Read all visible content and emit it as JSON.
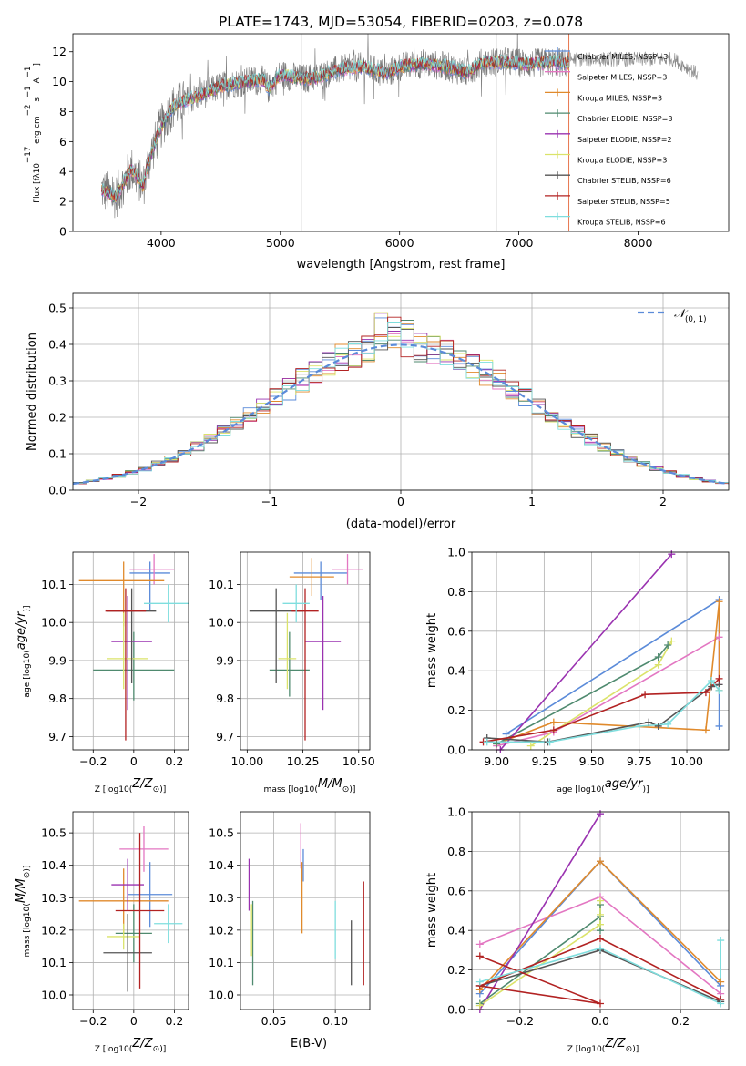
{
  "figure": {
    "title": "PLATE=1743, MJD=53054, FIBERID=0203, z=0.078"
  },
  "chart_data": [
    {
      "id": "spectrum",
      "type": "line",
      "xlabel": "wavelength [Angstrom, rest frame]",
      "ylabel": "Flux [f_λ 10^-17 erg cm^-2 s^-1 A^-1]",
      "xlim": [
        3260,
        8760
      ],
      "ylim": [
        0,
        13.2
      ],
      "xticks": [
        4000,
        5000,
        6000,
        7000,
        8000
      ],
      "yticks": [
        0,
        2,
        4,
        6,
        8,
        10,
        12
      ],
      "grid": false,
      "legend_position": "top-right",
      "data_range": [
        3500,
        7420
      ],
      "observed_color": "#777777",
      "anchors": {
        "x": [
          3500,
          3620,
          3750,
          3850,
          3900,
          4000,
          4100,
          4200,
          4300,
          4500,
          4700,
          4860,
          4900,
          5000,
          5175,
          5300,
          5500,
          5700,
          5890,
          6000,
          6200,
          6400,
          6563,
          6700,
          6900,
          7100,
          7300,
          7420
        ],
        "y": [
          2.8,
          2.3,
          4.2,
          3.0,
          4.8,
          7.0,
          8.3,
          8.7,
          9.0,
          9.7,
          10.0,
          10.1,
          9.5,
          10.5,
          10.2,
          10.3,
          10.8,
          11.0,
          10.5,
          11.0,
          11.2,
          11.0,
          10.6,
          11.3,
          11.3,
          11.2,
          11.3,
          11.2
        ]
      },
      "series": [
        {
          "name": "Chabrier MILES, N_SSP=3",
          "color": "#5b8bd9"
        },
        {
          "name": "Salpeter MILES, N_SSP=3",
          "color": "#e377c2"
        },
        {
          "name": "Kroupa MILES, N_SSP=3",
          "color": "#e08a2c"
        },
        {
          "name": "Chabrier ELODIE, N_SSP=3",
          "color": "#4f8a6f"
        },
        {
          "name": "Salpeter ELODIE, N_SSP=2",
          "color": "#9a32b0"
        },
        {
          "name": "Kroupa ELODIE, N_SSP=3",
          "color": "#dbe36a"
        },
        {
          "name": "Chabrier STELIB, N_SSP=6",
          "color": "#555555"
        },
        {
          "name": "Salpeter STELIB, N_SSP=5",
          "color": "#b22222"
        },
        {
          "name": "Kroupa STELIB, N_SSP=6",
          "color": "#7fdede"
        }
      ]
    },
    {
      "id": "residuals",
      "type": "histogram",
      "xlabel": "(data-model)/error",
      "ylabel": "Normed distribution",
      "xlim": [
        -2.5,
        2.5
      ],
      "ylim": [
        0,
        0.54
      ],
      "xticks": [
        -2,
        -1,
        0,
        1,
        2
      ],
      "yticks": [
        0.0,
        0.1,
        0.2,
        0.3,
        0.4,
        0.5
      ],
      "grid": true,
      "legend_position": "top-right",
      "reference_curve": {
        "name": "N(0,1)",
        "color": "#5b8bd9",
        "style": "dashed"
      },
      "bin_width": 0.1,
      "bins_start": -2.5
    },
    {
      "id": "age-vs-Z",
      "type": "errorbar",
      "xlabel": "Z [log10(Z/Z☉)]",
      "ylabel": "age [log10(age/yr)]",
      "xlim": [
        -0.3,
        0.27
      ],
      "ylim": [
        9.665,
        10.185
      ],
      "xticks": [
        -0.2,
        0.0,
        0.2
      ],
      "yticks": [
        9.7,
        9.8,
        9.9,
        10.0,
        10.1
      ],
      "grid": true,
      "points": [
        {
          "series": "Chabrier MILES",
          "x": 0.08,
          "xerr": [
            0.1,
            0.1
          ],
          "y": 10.13,
          "yerr": [
            0.1,
            0.03
          ]
        },
        {
          "series": "Salpeter MILES",
          "x": 0.1,
          "xerr": [
            0.12,
            0.1
          ],
          "y": 10.14,
          "yerr": [
            0.04,
            0.04
          ]
        },
        {
          "series": "Kroupa MILES",
          "x": -0.05,
          "xerr": [
            0.22,
            0.2
          ],
          "y": 10.11,
          "yerr": [
            0.12,
            0.05
          ]
        },
        {
          "series": "Chabrier ELODIE",
          "x": 0.0,
          "xerr": [
            0.2,
            0.2
          ],
          "y": 9.875,
          "yerr": [
            0.08,
            0.1
          ]
        },
        {
          "series": "Salpeter ELODIE",
          "x": -0.03,
          "xerr": [
            0.08,
            0.12
          ],
          "y": 9.95,
          "yerr": [
            0.18,
            0.12
          ]
        },
        {
          "series": "Kroupa ELODIE",
          "x": -0.05,
          "xerr": [
            0.08,
            0.12
          ],
          "y": 9.905,
          "yerr": [
            0.08,
            0.12
          ]
        },
        {
          "series": "Chabrier STELIB",
          "x": -0.01,
          "xerr": [
            0.12,
            0.12
          ],
          "y": 10.03,
          "yerr": [
            0.19,
            0.06
          ]
        },
        {
          "series": "Salpeter STELIB",
          "x": -0.04,
          "xerr": [
            0.1,
            0.1
          ],
          "y": 10.03,
          "yerr": [
            0.34,
            0.06
          ]
        },
        {
          "series": "Kroupa STELIB",
          "x": 0.17,
          "xerr": [
            0.12,
            0.1
          ],
          "y": 10.05,
          "yerr": [
            0.05,
            0.05
          ]
        }
      ]
    },
    {
      "id": "age-vs-mass",
      "type": "errorbar",
      "xlabel": "mass [log10(M/M☉)]",
      "xlim": [
        9.97,
        10.55
      ],
      "ylim": [
        9.665,
        10.185
      ],
      "xticks": [
        10.0,
        10.25,
        10.5
      ],
      "xtick_labels": [
        "10.00",
        "10.25",
        "10.50"
      ],
      "yticks": [
        9.7,
        9.8,
        9.9,
        10.0,
        10.1
      ],
      "grid": true,
      "points": [
        {
          "series": "Chabrier MILES",
          "x": 10.33,
          "xerr": [
            0.12,
            0.12
          ],
          "y": 10.13,
          "yerr": [
            0.07,
            0.03
          ]
        },
        {
          "series": "Salpeter MILES",
          "x": 10.45,
          "xerr": [
            0.07,
            0.07
          ],
          "y": 10.14,
          "yerr": [
            0.04,
            0.04
          ]
        },
        {
          "series": "Kroupa MILES",
          "x": 10.29,
          "xerr": [
            0.1,
            0.1
          ],
          "y": 10.12,
          "yerr": [
            0.05,
            0.05
          ]
        },
        {
          "series": "Chabrier ELODIE",
          "x": 10.19,
          "xerr": [
            0.09,
            0.09
          ],
          "y": 9.875,
          "yerr": [
            0.07,
            0.1
          ]
        },
        {
          "series": "Salpeter ELODIE",
          "x": 10.34,
          "xerr": [
            0.08,
            0.08
          ],
          "y": 9.95,
          "yerr": [
            0.18,
            0.12
          ]
        },
        {
          "series": "Kroupa ELODIE",
          "x": 10.18,
          "xerr": [
            0.04,
            0.04
          ],
          "y": 9.905,
          "yerr": [
            0.08,
            0.12
          ]
        },
        {
          "series": "Chabrier STELIB",
          "x": 10.13,
          "xerr": [
            0.12,
            0.12
          ],
          "y": 10.03,
          "yerr": [
            0.19,
            0.06
          ]
        },
        {
          "series": "Salpeter STELIB",
          "x": 10.26,
          "xerr": [
            0.06,
            0.06
          ],
          "y": 10.03,
          "yerr": [
            0.34,
            0.06
          ]
        },
        {
          "series": "Kroupa STELIB",
          "x": 10.22,
          "xerr": [
            0.06,
            0.06
          ],
          "y": 10.05,
          "yerr": [
            0.05,
            0.05
          ]
        }
      ]
    },
    {
      "id": "weight-vs-age",
      "type": "line",
      "xlabel": "age [log10(age/yr)]",
      "ylabel": "mass weight",
      "xlim": [
        8.87,
        10.22
      ],
      "ylim": [
        0,
        1.0
      ],
      "xticks": [
        9.0,
        9.25,
        9.5,
        9.75,
        10.0
      ],
      "xtick_labels": [
        "9.00",
        "9.25",
        "9.50",
        "9.75",
        "10.00"
      ],
      "yticks": [
        0.0,
        0.2,
        0.4,
        0.6,
        0.8,
        1.0
      ],
      "grid": true,
      "series": [
        {
          "name": "Chabrier MILES",
          "x": [
            9.05,
            10.17,
            10.17
          ],
          "y": [
            0.08,
            0.76,
            0.12
          ]
        },
        {
          "name": "Salpeter MILES",
          "x": [
            9.0,
            9.3,
            10.17,
            10.17
          ],
          "y": [
            0.02,
            0.09,
            0.57,
            0.33
          ]
        },
        {
          "name": "Kroupa MILES",
          "x": [
            9.0,
            9.3,
            10.1,
            10.17,
            10.17
          ],
          "y": [
            0.03,
            0.14,
            0.1,
            0.75,
            0.3
          ]
        },
        {
          "name": "Chabrier ELODIE",
          "x": [
            9.0,
            9.85,
            9.9
          ],
          "y": [
            0.03,
            0.47,
            0.53
          ]
        },
        {
          "name": "Salpeter ELODIE",
          "x": [
            9.02,
            9.92
          ],
          "y": [
            0.0,
            0.99
          ]
        },
        {
          "name": "Kroupa ELODIE",
          "x": [
            9.18,
            9.85,
            9.92
          ],
          "y": [
            0.02,
            0.43,
            0.55
          ]
        },
        {
          "name": "Chabrier STELIB",
          "x": [
            8.95,
            9.27,
            9.8,
            9.85,
            10.13,
            10.17
          ],
          "y": [
            0.06,
            0.04,
            0.14,
            0.12,
            0.32,
            0.33
          ]
        },
        {
          "name": "Salpeter STELIB",
          "x": [
            8.93,
            9.3,
            9.78,
            10.1,
            10.17
          ],
          "y": [
            0.04,
            0.1,
            0.28,
            0.29,
            0.36
          ]
        },
        {
          "name": "Kroupa STELIB",
          "x": [
            8.95,
            9.28,
            9.75,
            9.9,
            10.13,
            10.17
          ],
          "y": [
            0.04,
            0.04,
            0.12,
            0.13,
            0.35,
            0.3
          ]
        }
      ]
    },
    {
      "id": "mass-vs-Z",
      "type": "errorbar",
      "xlabel": "Z [log10(Z/Z☉)]",
      "ylabel": "mass [log10(M/M☉)]",
      "xlim": [
        -0.3,
        0.27
      ],
      "ylim": [
        9.955,
        10.565
      ],
      "xticks": [
        -0.2,
        0.0,
        0.2
      ],
      "yticks": [
        10.0,
        10.1,
        10.2,
        10.3,
        10.4,
        10.5
      ],
      "grid": true,
      "points": [
        {
          "series": "Chabrier MILES",
          "x": 0.08,
          "xerr": [
            0.11,
            0.11
          ],
          "y": 10.31,
          "yerr": [
            0.1,
            0.1
          ]
        },
        {
          "series": "Salpeter MILES",
          "x": 0.05,
          "xerr": [
            0.12,
            0.12
          ],
          "y": 10.45,
          "yerr": [
            0.07,
            0.07
          ]
        },
        {
          "series": "Kroupa MILES",
          "x": -0.05,
          "xerr": [
            0.22,
            0.22
          ],
          "y": 10.29,
          "yerr": [
            0.1,
            0.1
          ]
        },
        {
          "series": "Chabrier ELODIE",
          "x": 0.0,
          "xerr": [
            0.09,
            0.09
          ],
          "y": 10.19,
          "yerr": [
            0.09,
            0.09
          ]
        },
        {
          "series": "Salpeter ELODIE",
          "x": -0.03,
          "xerr": [
            0.08,
            0.08
          ],
          "y": 10.34,
          "yerr": [
            0.08,
            0.08
          ]
        },
        {
          "series": "Kroupa ELODIE",
          "x": -0.05,
          "xerr": [
            0.08,
            0.08
          ],
          "y": 10.18,
          "yerr": [
            0.04,
            0.04
          ]
        },
        {
          "series": "Chabrier STELIB",
          "x": -0.03,
          "xerr": [
            0.12,
            0.12
          ],
          "y": 10.13,
          "yerr": [
            0.12,
            0.12
          ]
        },
        {
          "series": "Salpeter STELIB",
          "x": 0.03,
          "xerr": [
            0.12,
            0.12
          ],
          "y": 10.26,
          "yerr": [
            0.24,
            0.24
          ]
        },
        {
          "series": "Kroupa STELIB",
          "x": 0.17,
          "xerr": [
            0.07,
            0.07
          ],
          "y": 10.22,
          "yerr": [
            0.06,
            0.06
          ]
        }
      ]
    },
    {
      "id": "mass-vs-EBV",
      "type": "errorbar",
      "xlabel": "E(B-V)",
      "xlim": [
        0.023,
        0.128
      ],
      "ylim": [
        9.955,
        10.565
      ],
      "xticks": [
        0.05,
        0.1
      ],
      "xtick_labels": [
        "0.05",
        "0.10"
      ],
      "yticks": [
        10.0,
        10.1,
        10.2,
        10.3,
        10.4,
        10.5
      ],
      "grid": true,
      "points": [
        {
          "series": "Chabrier MILES",
          "x": 0.074,
          "xerr": [
            0.0,
            0.0
          ],
          "y": 10.4,
          "yerr": [
            0.05,
            0.05
          ]
        },
        {
          "series": "Salpeter MILES",
          "x": 0.072,
          "xerr": [
            0.0,
            0.0
          ],
          "y": 10.46,
          "yerr": [
            0.07,
            0.07
          ]
        },
        {
          "series": "Kroupa MILES",
          "x": 0.073,
          "xerr": [
            0.0,
            0.0
          ],
          "y": 10.3,
          "yerr": [
            0.11,
            0.11
          ]
        },
        {
          "series": "Chabrier ELODIE",
          "x": 0.033,
          "xerr": [
            0.0,
            0.0
          ],
          "y": 10.16,
          "yerr": [
            0.13,
            0.13
          ]
        },
        {
          "series": "Salpeter ELODIE",
          "x": 0.03,
          "xerr": [
            0.0,
            0.0
          ],
          "y": 10.34,
          "yerr": [
            0.08,
            0.08
          ]
        },
        {
          "series": "Kroupa ELODIE",
          "x": 0.032,
          "xerr": [
            0.0,
            0.0
          ],
          "y": 10.2,
          "yerr": [
            0.08,
            0.08
          ]
        },
        {
          "series": "Chabrier STELIB",
          "x": 0.113,
          "xerr": [
            0.0,
            0.0
          ],
          "y": 10.13,
          "yerr": [
            0.1,
            0.1
          ]
        },
        {
          "series": "Salpeter STELIB",
          "x": 0.123,
          "xerr": [
            0.0,
            0.0
          ],
          "y": 10.19,
          "yerr": [
            0.16,
            0.16
          ]
        },
        {
          "series": "Kroupa STELIB",
          "x": 0.1,
          "xerr": [
            0.0,
            0.0
          ],
          "y": 10.2,
          "yerr": [
            0.09,
            0.09
          ]
        }
      ]
    },
    {
      "id": "weight-vs-Z",
      "type": "line",
      "xlabel": "Z [log10(Z/Z☉)]",
      "ylabel": "mass weight",
      "xlim": [
        -0.32,
        0.32
      ],
      "ylim": [
        0,
        1.0
      ],
      "xticks": [
        -0.2,
        0.0,
        0.2
      ],
      "xtick_labels": [
        "−0.2",
        "0.0",
        "0.2"
      ],
      "yticks": [
        0.0,
        0.2,
        0.4,
        0.6,
        0.8,
        1.0
      ],
      "grid": true,
      "series": [
        {
          "name": "Chabrier MILES",
          "x": [
            -0.3,
            0.0,
            0.3
          ],
          "y": [
            0.08,
            0.75,
            0.12
          ]
        },
        {
          "name": "Salpeter MILES",
          "x": [
            -0.3,
            0.0,
            0.3
          ],
          "y": [
            0.33,
            0.57,
            0.08
          ]
        },
        {
          "name": "Kroupa MILES",
          "x": [
            -0.3,
            0.0,
            0.3
          ],
          "y": [
            0.1,
            0.75,
            0.14
          ]
        },
        {
          "name": "Chabrier ELODIE",
          "x": [
            -0.3,
            0.0,
            0.0,
            0.0
          ],
          "y": [
            0.03,
            0.47,
            0.53,
            0.4
          ]
        },
        {
          "name": "Salpeter ELODIE",
          "x": [
            -0.3,
            0.0
          ],
          "y": [
            0.0,
            0.99
          ]
        },
        {
          "name": "Kroupa ELODIE",
          "x": [
            -0.3,
            0.0,
            0.0,
            0.0
          ],
          "y": [
            0.02,
            0.43,
            0.55,
            0.48
          ]
        },
        {
          "name": "Chabrier STELIB",
          "x": [
            -0.3,
            0.0,
            0.3
          ],
          "y": [
            0.12,
            0.3,
            0.04
          ]
        },
        {
          "name": "Salpeter STELIB",
          "x": [
            -0.3,
            0.0,
            -0.3,
            0.0,
            0.3
          ],
          "y": [
            0.27,
            0.03,
            0.12,
            0.36,
            0.05
          ]
        },
        {
          "name": "Kroupa STELIB",
          "x": [
            -0.3,
            0.0,
            0.3,
            0.3
          ],
          "y": [
            0.14,
            0.31,
            0.03,
            0.35
          ]
        }
      ]
    }
  ]
}
